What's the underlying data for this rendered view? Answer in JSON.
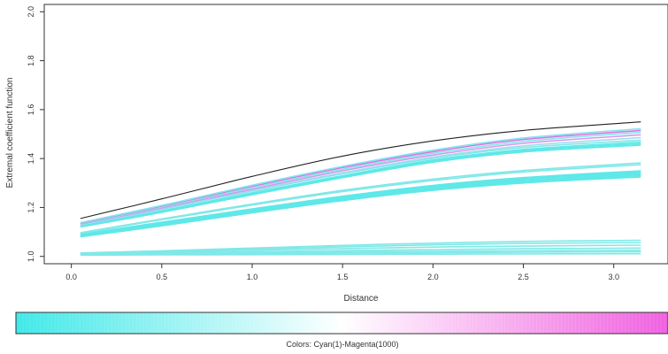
{
  "chart_data": {
    "type": "line",
    "xlabel": "Distance",
    "ylabel": "Extremal coefficient function",
    "xlim": [
      -0.15,
      3.3
    ],
    "ylim": [
      0.97,
      2.03
    ],
    "x_ticks": [
      "0.0",
      "0.5",
      "1.0",
      "1.5",
      "2.0",
      "2.5",
      "3.0"
    ],
    "y_ticks": [
      "1.0",
      "1.2",
      "1.4",
      "1.6",
      "1.8",
      "2.0"
    ],
    "grid": false,
    "x": [
      0.05,
      0.5,
      1.0,
      1.5,
      2.0,
      2.5,
      3.15
    ],
    "series": [
      {
        "color": "#80e8e8",
        "values": [
          1.005,
          1.006,
          1.007,
          1.008,
          1.009,
          1.01,
          1.011
        ]
      },
      {
        "color": "#80e8e8",
        "values": [
          1.007,
          1.009,
          1.011,
          1.013,
          1.015,
          1.017,
          1.019
        ]
      },
      {
        "color": "#80e8e8",
        "values": [
          1.009,
          1.012,
          1.015,
          1.018,
          1.021,
          1.023,
          1.025
        ]
      },
      {
        "color": "#80e8e8",
        "values": [
          1.01,
          1.014,
          1.019,
          1.024,
          1.028,
          1.031,
          1.034
        ]
      },
      {
        "color": "#80e8e8",
        "values": [
          1.012,
          1.018,
          1.025,
          1.032,
          1.038,
          1.042,
          1.046
        ]
      },
      {
        "color": "#80e8e8",
        "values": [
          1.013,
          1.021,
          1.03,
          1.039,
          1.047,
          1.053,
          1.057
        ]
      },
      {
        "color": "#80e8e8",
        "values": [
          1.014,
          1.023,
          1.034,
          1.045,
          1.054,
          1.061,
          1.066
        ]
      },
      {
        "color": "#5fe8e8",
        "values": [
          1.08,
          1.125,
          1.178,
          1.228,
          1.27,
          1.3,
          1.325
        ]
      },
      {
        "color": "#5fe8e8",
        "values": [
          1.082,
          1.128,
          1.181,
          1.232,
          1.274,
          1.305,
          1.33
        ]
      },
      {
        "color": "#5fe8e8",
        "values": [
          1.084,
          1.131,
          1.184,
          1.235,
          1.278,
          1.309,
          1.335
        ]
      },
      {
        "color": "#5fe8e8",
        "values": [
          1.086,
          1.134,
          1.188,
          1.239,
          1.282,
          1.314,
          1.34
        ]
      },
      {
        "color": "#5fe8e8",
        "values": [
          1.088,
          1.137,
          1.191,
          1.243,
          1.286,
          1.318,
          1.345
        ]
      },
      {
        "color": "#5fe8e8",
        "values": [
          1.09,
          1.14,
          1.194,
          1.246,
          1.29,
          1.322,
          1.35
        ]
      },
      {
        "color": "#80e8e8",
        "values": [
          1.095,
          1.15,
          1.21,
          1.265,
          1.31,
          1.345,
          1.375
        ]
      },
      {
        "color": "#80e8e8",
        "values": [
          1.097,
          1.153,
          1.214,
          1.27,
          1.316,
          1.351,
          1.382
        ]
      },
      {
        "color": "#5fe8e8",
        "values": [
          1.12,
          1.18,
          1.252,
          1.322,
          1.385,
          1.427,
          1.455
        ]
      },
      {
        "color": "#5fe8e8",
        "values": [
          1.122,
          1.183,
          1.256,
          1.326,
          1.39,
          1.432,
          1.461
        ]
      },
      {
        "color": "#5fe8e8",
        "values": [
          1.124,
          1.186,
          1.26,
          1.33,
          1.394,
          1.437,
          1.467
        ]
      },
      {
        "color": "#80e8e8",
        "values": [
          1.128,
          1.192,
          1.267,
          1.338,
          1.401,
          1.445,
          1.475
        ]
      },
      {
        "color": "#a0dcef",
        "values": [
          1.13,
          1.195,
          1.27,
          1.342,
          1.406,
          1.452,
          1.485
        ]
      },
      {
        "color": "#d896ec",
        "values": [
          1.132,
          1.198,
          1.275,
          1.35,
          1.414,
          1.462,
          1.497
        ]
      },
      {
        "color": "#80e8e8",
        "values": [
          1.134,
          1.202,
          1.281,
          1.356,
          1.421,
          1.47,
          1.507
        ]
      },
      {
        "color": "#e070e0",
        "values": [
          1.136,
          1.206,
          1.287,
          1.363,
          1.428,
          1.478,
          1.515
        ]
      },
      {
        "color": "#7ee6f0",
        "values": [
          1.138,
          1.208,
          1.291,
          1.368,
          1.434,
          1.484,
          1.522
        ]
      },
      {
        "color": "#222222",
        "values": [
          1.155,
          1.235,
          1.327,
          1.41,
          1.472,
          1.515,
          1.55
        ]
      }
    ]
  },
  "colorbar": {
    "label": "Colors: Cyan(1)-Magenta(1000)",
    "start_color": "#40e8e8",
    "mid_color": "#ffffff",
    "end_color": "#f060e0"
  }
}
